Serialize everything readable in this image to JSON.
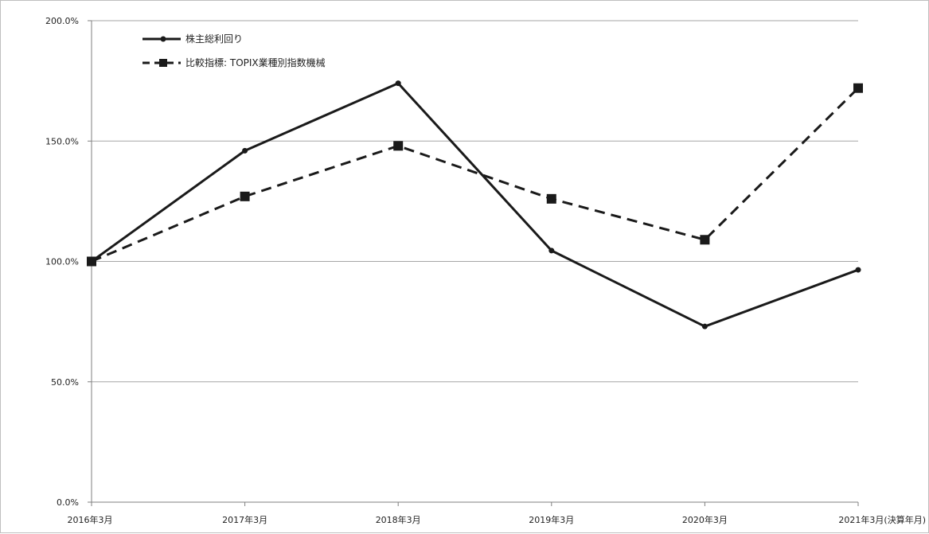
{
  "chart_data": {
    "type": "line",
    "categories": [
      "2016年3月",
      "2017年3月",
      "2018年3月",
      "2019年3月",
      "2020年3月",
      "2021年3月(決算年月)"
    ],
    "series": [
      {
        "name": "株主総利回り",
        "values": [
          100.0,
          146.0,
          174.0,
          104.5,
          73.0,
          96.5
        ],
        "style": "solid",
        "marker": "circle",
        "color": "#1a1a1a"
      },
      {
        "name": "比較指標: TOPIX業種別指数機械",
        "values": [
          100.0,
          127.0,
          148.0,
          126.0,
          109.0,
          172.0
        ],
        "style": "dashed",
        "marker": "square",
        "color": "#1a1a1a"
      }
    ],
    "ylim": [
      0,
      200
    ],
    "yticks": [
      "0.0%",
      "50.0%",
      "100.0%",
      "150.0%",
      "200.0%"
    ],
    "grid": true,
    "legend_position": "top-left",
    "title": "",
    "xlabel": "",
    "ylabel": ""
  }
}
